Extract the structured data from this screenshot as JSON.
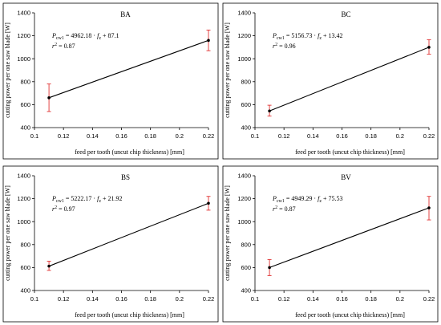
{
  "chart_data": [
    {
      "type": "scatter",
      "title": "BA",
      "xlabel": "feed per tooth (uncut chip thickness) [mm]",
      "ylabel": "cutting power per one saw blade [W]",
      "xlim": [
        0.1,
        0.22
      ],
      "ylim": [
        400,
        1400
      ],
      "xticks": [
        "0.1",
        "0.12",
        "0.14",
        "0.16",
        "0.18",
        "0.2",
        "0.22"
      ],
      "yticks": [
        "400",
        "600",
        "800",
        "1000",
        "1200",
        "1400"
      ],
      "points": [
        {
          "x": 0.11,
          "y": 660,
          "err_low": 540,
          "err_high": 780
        },
        {
          "x": 0.22,
          "y": 1160,
          "err_low": 1070,
          "err_high": 1250
        }
      ],
      "equation": {
        "symbol": "P",
        "sub": "cw1",
        "mid": " = 4962.18 · ",
        "var": "f",
        "var_sub": "z",
        "tail": " + 87.1"
      },
      "r2": {
        "symbol": "r",
        "sup": "2",
        "value": " = 0.87"
      }
    },
    {
      "type": "scatter",
      "title": "BC",
      "xlabel": "feed per tooth (uncut chip thickness) [mm]",
      "ylabel": "cutting power per one saw blade [W]",
      "xlim": [
        0.1,
        0.22
      ],
      "ylim": [
        400,
        1400
      ],
      "xticks": [
        "0.1",
        "0.12",
        "0.14",
        "0.16",
        "0.18",
        "0.2",
        "0.22"
      ],
      "yticks": [
        "400",
        "600",
        "800",
        "1000",
        "1200",
        "1400"
      ],
      "points": [
        {
          "x": 0.11,
          "y": 545,
          "err_low": 500,
          "err_high": 595
        },
        {
          "x": 0.22,
          "y": 1100,
          "err_low": 1040,
          "err_high": 1165
        }
      ],
      "equation": {
        "symbol": "P",
        "sub": "cw1",
        "mid": " = 5156.73 · ",
        "var": "f",
        "var_sub": "z",
        "tail": " + 13.42"
      },
      "r2": {
        "symbol": "r",
        "sup": "2",
        "value": " = 0.96"
      }
    },
    {
      "type": "scatter",
      "title": "BS",
      "xlabel": "feed per tooth (uncut chip thickness) [mm]",
      "ylabel": "cutting power per one saw blade [W]",
      "xlim": [
        0.1,
        0.22
      ],
      "ylim": [
        400,
        1400
      ],
      "xticks": [
        "0.1",
        "0.12",
        "0.14",
        "0.16",
        "0.18",
        "0.2",
        "0.22"
      ],
      "yticks": [
        "400",
        "600",
        "800",
        "1000",
        "1200",
        "1400"
      ],
      "points": [
        {
          "x": 0.11,
          "y": 612,
          "err_low": 575,
          "err_high": 655
        },
        {
          "x": 0.22,
          "y": 1160,
          "err_low": 1100,
          "err_high": 1220
        }
      ],
      "equation": {
        "symbol": "P",
        "sub": "cw1",
        "mid": " = 5222.17 · ",
        "var": "f",
        "var_sub": "z",
        "tail": " + 21.92"
      },
      "r2": {
        "symbol": "r",
        "sup": "2",
        "value": " = 0.97"
      }
    },
    {
      "type": "scatter",
      "title": "BV",
      "xlabel": "feed per tooth (uncut chip thickness) [mm]",
      "ylabel": "cutting power per one saw blade [W]",
      "xlim": [
        0.1,
        0.22
      ],
      "ylim": [
        400,
        1400
      ],
      "xticks": [
        "0.1",
        "0.12",
        "0.14",
        "0.16",
        "0.18",
        "0.2",
        "0.22"
      ],
      "yticks": [
        "400",
        "600",
        "800",
        "1000",
        "1200",
        "1400"
      ],
      "points": [
        {
          "x": 0.11,
          "y": 600,
          "err_low": 530,
          "err_high": 670
        },
        {
          "x": 0.22,
          "y": 1120,
          "err_low": 1015,
          "err_high": 1220
        }
      ],
      "equation": {
        "symbol": "P",
        "sub": "cw1",
        "mid": " = 4949.29 · ",
        "var": "f",
        "var_sub": "z",
        "tail": " + 75.53"
      },
      "r2": {
        "symbol": "r",
        "sup": "2",
        "value": " = 0.87"
      }
    }
  ],
  "colors": {
    "error_bar": "#e03030",
    "line": "#000000",
    "point": "#000000",
    "axis": "#000000"
  }
}
